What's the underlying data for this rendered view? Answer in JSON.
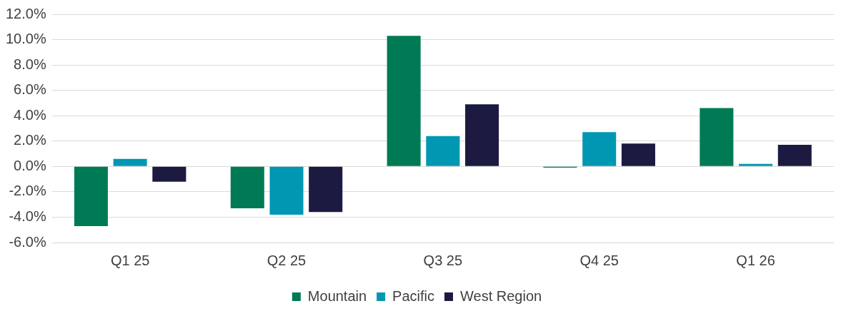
{
  "chart_data": {
    "type": "bar",
    "categories": [
      "Q1 25",
      "Q2 25",
      "Q3 25",
      "Q4 25",
      "Q1 26"
    ],
    "series": [
      {
        "name": "Mountain",
        "color": "#007a55",
        "values": [
          -4.7,
          -3.3,
          10.3,
          -0.1,
          4.6
        ]
      },
      {
        "name": "Pacific",
        "color": "#0097b2",
        "values": [
          0.6,
          -3.8,
          2.4,
          2.7,
          0.2
        ]
      },
      {
        "name": "West Region",
        "color": "#1c1a40",
        "values": [
          -1.2,
          -3.6,
          4.9,
          1.8,
          1.7
        ]
      }
    ],
    "ylim": [
      -6,
      12
    ],
    "yticks": [
      {
        "value": -6,
        "label": "-6.0%"
      },
      {
        "value": -4,
        "label": "-4.0%"
      },
      {
        "value": -2,
        "label": "-2.0%"
      },
      {
        "value": 0,
        "label": "0.0%"
      },
      {
        "value": 2,
        "label": "2.0%"
      },
      {
        "value": 4,
        "label": "4.0%"
      },
      {
        "value": 6,
        "label": "6.0%"
      },
      {
        "value": 8,
        "label": "8.0%"
      },
      {
        "value": 10,
        "label": "10.0%"
      },
      {
        "value": 12,
        "label": "12.0%"
      }
    ],
    "grid": "y",
    "legend": "bottom"
  }
}
